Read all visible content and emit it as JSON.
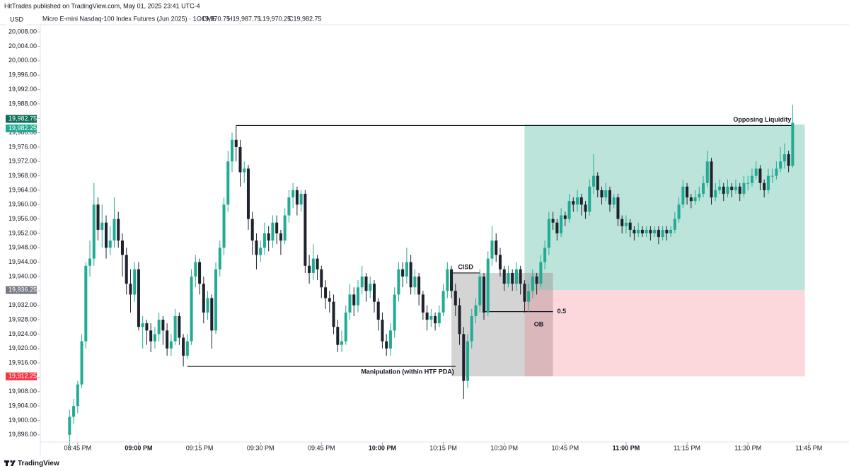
{
  "chart_data": {
    "type": "candlestick",
    "published": "HitTrades published on TradingView.com, May 01, 2025 23:41 UTC-4",
    "currency": "USD",
    "title": "Micro E-mini Nasdaq-100 Index Futures (Jun 2025) · 1 · CME",
    "ohlc_legend": [
      "O19,970.75",
      "H19,987.75",
      "L19,970.25",
      "C19,982.75"
    ],
    "brand": "TradingView",
    "up_color": "#22ab94",
    "down_color": "#1e222d",
    "xlim": [
      -7.2,
      191
    ],
    "ylim": [
      19894,
      20010
    ],
    "xticks": [
      {
        "value": 2,
        "label": "08:45 PM"
      },
      {
        "value": 17,
        "label": "09:00 PM",
        "bold": true
      },
      {
        "value": 32,
        "label": "09:15 PM"
      },
      {
        "value": 47,
        "label": "09:30 PM"
      },
      {
        "value": 62,
        "label": "09:45 PM"
      },
      {
        "value": 77,
        "label": "10:00 PM",
        "bold": true
      },
      {
        "value": 92,
        "label": "10:15 PM"
      },
      {
        "value": 107,
        "label": "10:30 PM"
      },
      {
        "value": 122,
        "label": "10:45 PM"
      },
      {
        "value": 137,
        "label": "11:00 PM",
        "bold": true
      },
      {
        "value": 152,
        "label": "11:15 PM"
      },
      {
        "value": 167,
        "label": "11:30 PM"
      },
      {
        "value": 182,
        "label": "11:45 PM"
      }
    ],
    "yticks": [
      {
        "value": 20008,
        "label": "20,008.00"
      },
      {
        "value": 20004,
        "label": "20,004.00"
      },
      {
        "value": 20000,
        "label": "20,000.00"
      },
      {
        "value": 19996,
        "label": "19,996.00"
      },
      {
        "value": 19992,
        "label": "19,992.00"
      },
      {
        "value": 19988,
        "label": "19,988.00"
      },
      {
        "value": 19984,
        "label": "19,984.00"
      },
      {
        "value": 19980,
        "label": "19,980.00"
      },
      {
        "value": 19976,
        "label": "19,976.00"
      },
      {
        "value": 19972,
        "label": "19,972.00"
      },
      {
        "value": 19968,
        "label": "19,968.00"
      },
      {
        "value": 19964,
        "label": "19,964.00"
      },
      {
        "value": 19960,
        "label": "19,960.00"
      },
      {
        "value": 19956,
        "label": "19,956.00"
      },
      {
        "value": 19952,
        "label": "19,952.00"
      },
      {
        "value": 19948,
        "label": "19,948.00"
      },
      {
        "value": 19944,
        "label": "19,944.00"
      },
      {
        "value": 19940,
        "label": "19,940.00"
      },
      {
        "value": 19936,
        "label": "19,936.00"
      },
      {
        "value": 19932,
        "label": "19,932.00"
      },
      {
        "value": 19928,
        "label": "19,928.00"
      },
      {
        "value": 19924,
        "label": "19,924.00"
      },
      {
        "value": 19920,
        "label": "19,920.00"
      },
      {
        "value": 19916,
        "label": "19,916.00"
      },
      {
        "value": 19912,
        "label": "19,912.00"
      },
      {
        "value": 19908,
        "label": "19,908.00"
      },
      {
        "value": 19904,
        "label": "19,904.00"
      },
      {
        "value": 19900,
        "label": "19,900.00"
      },
      {
        "value": 19896,
        "label": "19,896.00"
      }
    ],
    "price_labels": [
      {
        "value": 19982.75,
        "label": "19,982.75",
        "color": "#0b6e5a",
        "shift": -1
      },
      {
        "value": 19982.25,
        "label": "19,982.25",
        "color": "#22ab94",
        "shift": 1
      },
      {
        "value": 19936.25,
        "label": "19,936.25",
        "color": "#787b86",
        "shift": 0
      },
      {
        "value": 19912.25,
        "label": "19,912.25",
        "color": "#f23645",
        "shift": 0
      }
    ],
    "boxes": [
      {
        "from": 112,
        "to": 181,
        "top": 19982.25,
        "bottom": 19936.25,
        "color": "#bde4da"
      },
      {
        "from": 112,
        "to": 181,
        "top": 19936.25,
        "bottom": 19912.25,
        "color": "#fcd8dd"
      },
      {
        "from": 94,
        "to": 112,
        "top": 19941,
        "bottom": 19912.25,
        "color": "#d4d4d4"
      },
      {
        "from": 112,
        "to": 119,
        "top": 19941,
        "bottom": 19912.25,
        "color": "#8a6a6e",
        "opacity": 0.3,
        "label": "OB"
      }
    ],
    "levels": [
      {
        "label": "Opposing Liquidity",
        "price": 19982,
        "from": 41,
        "to": 178,
        "label_position": "above-end"
      },
      {
        "label": "Manipulation (within HTF PDA)",
        "price": 19915,
        "from": 29,
        "to": 95,
        "label_position": "below-end"
      },
      {
        "label": "CISD",
        "price": 19941,
        "from": 94,
        "to": 101,
        "label_position": "above-center"
      },
      {
        "label": "0.5",
        "price": 19930.25,
        "from": 102,
        "to": 119,
        "label_position": "after-end"
      }
    ],
    "ohlc": [
      [
        19896,
        19903,
        19893,
        19901
      ],
      [
        19901,
        19906,
        19899,
        19904
      ],
      [
        19904,
        19911,
        19902,
        19910
      ],
      [
        19910,
        19924,
        19909,
        19922
      ],
      [
        19922,
        19944,
        19920,
        19943
      ],
      [
        19943,
        19950,
        19940,
        19945
      ],
      [
        19945,
        19966,
        19943,
        19960
      ],
      [
        19960,
        19962,
        19950,
        19953
      ],
      [
        19953,
        19960,
        19948,
        19955
      ],
      [
        19955,
        19957,
        19945,
        19948
      ],
      [
        19948,
        19954,
        19946,
        19950
      ],
      [
        19950,
        19962,
        19948,
        19956
      ],
      [
        19956,
        19958,
        19948,
        19950
      ],
      [
        19950,
        19952,
        19940,
        19946
      ],
      [
        19946,
        19948,
        19935,
        19938
      ],
      [
        19938,
        19942,
        19930,
        19935
      ],
      [
        19935,
        19944,
        19933,
        19942
      ],
      [
        19942,
        19944,
        19925,
        19926
      ],
      [
        19926,
        19929,
        19920,
        19927
      ],
      [
        19927,
        19928,
        19921,
        19925
      ],
      [
        19925,
        19927,
        19919,
        19922
      ],
      [
        19922,
        19926,
        19920,
        19924
      ],
      [
        19924,
        19930,
        19922,
        19928
      ],
      [
        19928,
        19929,
        19921,
        19925
      ],
      [
        19925,
        19927,
        19918,
        19920
      ],
      [
        19920,
        19924,
        19918,
        19922
      ],
      [
        19922,
        19931,
        19921,
        19929
      ],
      [
        19929,
        19930,
        19921,
        19923
      ],
      [
        19923,
        19924,
        19915,
        19918
      ],
      [
        19918,
        19924,
        19917,
        19922
      ],
      [
        19922,
        19942,
        19921,
        19940
      ],
      [
        19940,
        19946,
        19937,
        19944
      ],
      [
        19944,
        19945,
        19935,
        19938
      ],
      [
        19938,
        19940,
        19927,
        19930
      ],
      [
        19930,
        19936,
        19928,
        19934
      ],
      [
        19934,
        19935,
        19920,
        19925
      ],
      [
        19925,
        19944,
        19924,
        19942
      ],
      [
        19942,
        19950,
        19940,
        19948
      ],
      [
        19948,
        19962,
        19946,
        19960
      ],
      [
        19960,
        19975,
        19958,
        19972
      ],
      [
        19972,
        19980,
        19969,
        19978
      ],
      [
        19978,
        19982,
        19972,
        19976
      ],
      [
        19976,
        19978,
        19965,
        19969
      ],
      [
        19969,
        19972,
        19966,
        19970
      ],
      [
        19970,
        19971,
        19953,
        19956
      ],
      [
        19956,
        19958,
        19946,
        19950
      ],
      [
        19950,
        19952,
        19942,
        19946
      ],
      [
        19946,
        19950,
        19944,
        19948
      ],
      [
        19948,
        19955,
        19946,
        19952
      ],
      [
        19952,
        19954,
        19947,
        19950
      ],
      [
        19950,
        19957,
        19948,
        19955
      ],
      [
        19955,
        19957,
        19949,
        19952
      ],
      [
        19952,
        19953,
        19946,
        19950
      ],
      [
        19950,
        19959,
        19949,
        19957
      ],
      [
        19957,
        19964,
        19955,
        19962
      ],
      [
        19962,
        19966,
        19959,
        19964
      ],
      [
        19964,
        19965,
        19957,
        19960
      ],
      [
        19960,
        19964,
        19958,
        19963
      ],
      [
        19963,
        19964,
        19941,
        19943
      ],
      [
        19943,
        19946,
        19938,
        19941
      ],
      [
        19941,
        19949,
        19939,
        19945
      ],
      [
        19945,
        19946,
        19939,
        19942
      ],
      [
        19942,
        19943,
        19934,
        19937
      ],
      [
        19937,
        19939,
        19931,
        19934
      ],
      [
        19934,
        19936,
        19930,
        19933
      ],
      [
        19933,
        19935,
        19924,
        19926
      ],
      [
        19926,
        19928,
        19919,
        19921
      ],
      [
        19921,
        19925,
        19919,
        19922
      ],
      [
        19922,
        19932,
        19921,
        19930
      ],
      [
        19930,
        19938,
        19928,
        19935
      ],
      [
        19935,
        19937,
        19929,
        19932
      ],
      [
        19932,
        19939,
        19930,
        19937
      ],
      [
        19937,
        19943,
        19935,
        19940
      ],
      [
        19940,
        19941,
        19933,
        19936
      ],
      [
        19936,
        19940,
        19934,
        19938
      ],
      [
        19938,
        19939,
        19930,
        19933
      ],
      [
        19933,
        19934,
        19925,
        19928
      ],
      [
        19928,
        19930,
        19920,
        19922
      ],
      [
        19922,
        19924,
        19918,
        19920
      ],
      [
        19920,
        19927,
        19918,
        19925
      ],
      [
        19925,
        19937,
        19923,
        19935
      ],
      [
        19935,
        19944,
        19933,
        19942
      ],
      [
        19942,
        19944,
        19937,
        19940
      ],
      [
        19940,
        19948,
        19938,
        19944
      ],
      [
        19944,
        19946,
        19935,
        19937
      ],
      [
        19937,
        19942,
        19935,
        19940
      ],
      [
        19940,
        19941,
        19932,
        19935
      ],
      [
        19935,
        19936,
        19928,
        19930
      ],
      [
        19930,
        19932,
        19925,
        19928
      ],
      [
        19928,
        19931,
        19926,
        19929
      ],
      [
        19929,
        19930,
        19925,
        19927
      ],
      [
        19927,
        19932,
        19926,
        19930
      ],
      [
        19930,
        19938,
        19929,
        19936
      ],
      [
        19936,
        19944,
        19934,
        19942
      ],
      [
        19942,
        19943,
        19934,
        19936
      ],
      [
        19936,
        19938,
        19929,
        19932
      ],
      [
        19932,
        19934,
        19921,
        19924
      ],
      [
        19924,
        19926,
        19906,
        19911
      ],
      [
        19911,
        19924,
        19909,
        19922
      ],
      [
        19922,
        19931,
        19920,
        19929
      ],
      [
        19929,
        19934,
        19927,
        19932
      ],
      [
        19932,
        19942,
        19930,
        19940
      ],
      [
        19940,
        19941,
        19928,
        19930
      ],
      [
        19930,
        19947,
        19929,
        19945
      ],
      [
        19945,
        19954,
        19943,
        19950
      ],
      [
        19950,
        19952,
        19944,
        19946
      ],
      [
        19946,
        19948,
        19940,
        19942
      ],
      [
        19942,
        19943,
        19936,
        19938
      ],
      [
        19938,
        19943,
        19937,
        19941
      ],
      [
        19941,
        19942,
        19936,
        19938
      ],
      [
        19938,
        19944,
        19936,
        19942
      ],
      [
        19942,
        19943,
        19935,
        19938
      ],
      [
        19938,
        19939,
        19930,
        19933
      ],
      [
        19933,
        19938,
        19930,
        19936
      ],
      [
        19936,
        19942,
        19934,
        19940
      ],
      [
        19940,
        19941,
        19935,
        19938
      ],
      [
        19938,
        19946,
        19937,
        19944
      ],
      [
        19944,
        19950,
        19942,
        19948
      ],
      [
        19948,
        19958,
        19946,
        19956
      ],
      [
        19956,
        19958,
        19953,
        19955
      ],
      [
        19955,
        19956,
        19950,
        19952
      ],
      [
        19952,
        19959,
        19951,
        19957
      ],
      [
        19957,
        19958,
        19954,
        19956
      ],
      [
        19956,
        19963,
        19955,
        19961
      ],
      [
        19961,
        19962,
        19958,
        19960
      ],
      [
        19960,
        19964,
        19958,
        19962
      ],
      [
        19962,
        19963,
        19957,
        19960
      ],
      [
        19960,
        19961,
        19956,
        19958
      ],
      [
        19958,
        19967,
        19957,
        19965
      ],
      [
        19965,
        19974,
        19963,
        19968
      ],
      [
        19968,
        19969,
        19962,
        19964
      ],
      [
        19964,
        19965,
        19960,
        19962
      ],
      [
        19962,
        19966,
        19961,
        19964
      ],
      [
        19964,
        19965,
        19958,
        19960
      ],
      [
        19960,
        19963,
        19959,
        19962
      ],
      [
        19962,
        19963,
        19954,
        19956
      ],
      [
        19956,
        19957,
        19952,
        19954
      ],
      [
        19954,
        19957,
        19952,
        19955
      ],
      [
        19955,
        19956,
        19951,
        19953
      ],
      [
        19953,
        19954,
        19950,
        19952
      ],
      [
        19952,
        19955,
        19951,
        19953
      ],
      [
        19953,
        19954,
        19951,
        19952
      ],
      [
        19952,
        19954,
        19951,
        19953
      ],
      [
        19953,
        19954,
        19950,
        19952
      ],
      [
        19952,
        19954,
        19951,
        19953
      ],
      [
        19953,
        19954,
        19949,
        19951
      ],
      [
        19951,
        19954,
        19950,
        19953
      ],
      [
        19953,
        19954,
        19950,
        19952
      ],
      [
        19952,
        19954,
        19951,
        19953
      ],
      [
        19953,
        19958,
        19952,
        19956
      ],
      [
        19956,
        19962,
        19955,
        19960
      ],
      [
        19960,
        19967,
        19959,
        19965
      ],
      [
        19965,
        19966,
        19960,
        19962
      ],
      [
        19962,
        19963,
        19959,
        19961
      ],
      [
        19961,
        19964,
        19960,
        19962
      ],
      [
        19962,
        19965,
        19961,
        19963
      ],
      [
        19963,
        19968,
        19962,
        19966
      ],
      [
        19966,
        19975,
        19965,
        19972
      ],
      [
        19972,
        19973,
        19960,
        19962
      ],
      [
        19962,
        19966,
        19961,
        19964
      ],
      [
        19964,
        19967,
        19963,
        19965
      ],
      [
        19965,
        19966,
        19961,
        19963
      ],
      [
        19963,
        19967,
        19962,
        19965
      ],
      [
        19965,
        19966,
        19962,
        19964
      ],
      [
        19964,
        19967,
        19963,
        19965
      ],
      [
        19965,
        19966,
        19961,
        19963
      ],
      [
        19963,
        19968,
        19962,
        19966
      ],
      [
        19966,
        19968,
        19964,
        19966
      ],
      [
        19966,
        19970,
        19965,
        19968
      ],
      [
        19968,
        19972,
        19967,
        19970
      ],
      [
        19970,
        19971,
        19964,
        19966
      ],
      [
        19966,
        19967,
        19962,
        19964
      ],
      [
        19964,
        19970,
        19963,
        19968
      ],
      [
        19968,
        19970,
        19966,
        19968
      ],
      [
        19968,
        19972,
        19967,
        19970
      ],
      [
        19970,
        19976,
        19969,
        19972
      ],
      [
        19972,
        19977,
        19970,
        19974
      ],
      [
        19974,
        19975,
        19969,
        19970.75
      ],
      [
        19970.75,
        19987.75,
        19970.25,
        19982.75
      ]
    ]
  }
}
